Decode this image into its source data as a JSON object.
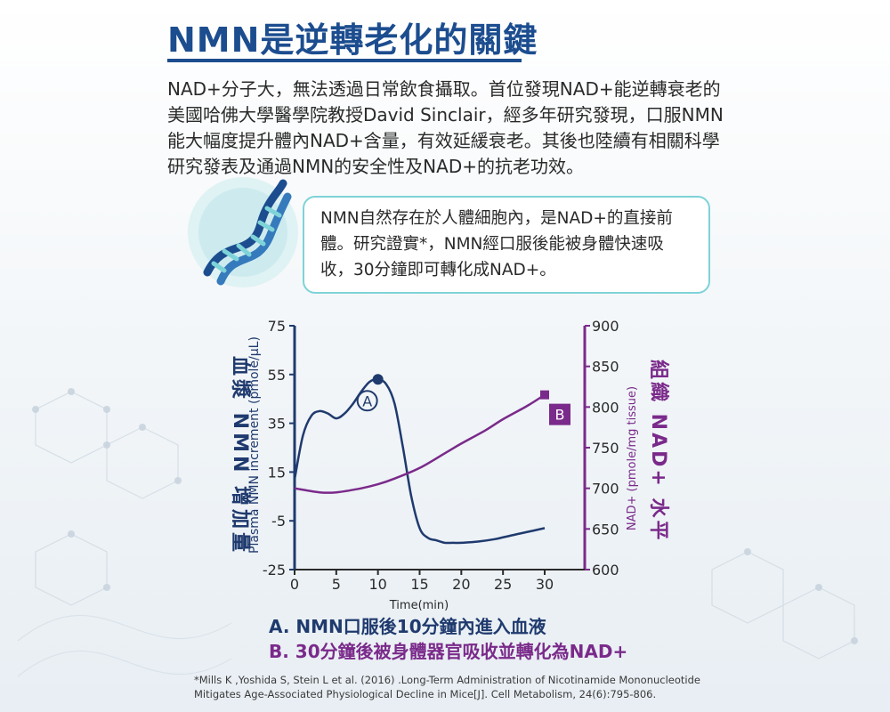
{
  "title": "NMN是逆轉老化的關鍵",
  "intro": "NAD+分子大，無法透過日常飲食攝取。首位發現NAD+能逆轉衰老的美國哈佛大學醫學院教授David Sinclair，經多年研究發現，口服NMN能大幅度提升體內NAD+含量，有效延緩衰老。其後也陸續有相關科學研究發表及通過NMN的安全性及NAD+的抗老功效。",
  "info_box": "NMN自然存在於人體細胞內，是NAD+的直接前體。研究證實*，NMN經口服後能被身體快速吸收，30分鐘即可轉化成NAD+。",
  "legend": {
    "a": "A. NMN口服後10分鐘內進入血液",
    "b": "B. 30分鐘後被身體器官吸收並轉化為NAD+"
  },
  "citation": "*Mills K ,Yoshida S, Stein L et al. (2016) .Long-Term Administration of Nicotinamide Mononucleotide Mitigates Age-Associated Physiological Decline in Mice[J]. Cell Metabolism, 24(6):795-806.",
  "colors": {
    "title": "#1c4d8f",
    "nmn_series": "#1f3a6e",
    "nad_series": "#7a2a8a",
    "box_border": "#7ed3d8"
  },
  "icons": [
    "dna-icon"
  ],
  "chart_data": {
    "type": "line",
    "xlabel": "Time(min)",
    "xlim": [
      0,
      30
    ],
    "xticks": [
      0,
      5,
      10,
      15,
      20,
      25,
      30
    ],
    "y_left": {
      "label_zh": "血漿 NMN 增加量",
      "label_en": "Plasma NMN increment (pmole/μL)",
      "ylim": [
        -25,
        75
      ],
      "ticks": [
        75,
        55,
        35,
        15,
        -5,
        -25
      ]
    },
    "y_right": {
      "label_zh": "組織 NAD+ 水平",
      "label_en": "NAD+ (pmole/mg tissue)",
      "ylim": [
        600,
        900
      ],
      "ticks": [
        900,
        850,
        800,
        750,
        700,
        650,
        600
      ]
    },
    "series": [
      {
        "axis": "left",
        "x": [
          0,
          1,
          2,
          3,
          4,
          5,
          6,
          7,
          8,
          9,
          10,
          11,
          12,
          13,
          14,
          15,
          16,
          17,
          18,
          19,
          20,
          22,
          24,
          26,
          28,
          30
        ],
        "y": [
          12,
          30,
          38,
          40,
          39,
          37,
          39,
          43,
          48,
          52,
          53,
          51,
          43,
          25,
          5,
          -8,
          -12,
          -13,
          -14,
          -14,
          -14,
          -13.5,
          -12.5,
          -11,
          -9.5,
          -8
        ],
        "marker": {
          "x": 10,
          "y": 53,
          "label": "A"
        }
      },
      {
        "axis": "right",
        "x": [
          0,
          3,
          5,
          8,
          10,
          12,
          15,
          18,
          20,
          23,
          25,
          28,
          30
        ],
        "y": [
          700,
          695,
          695,
          700,
          705,
          712,
          725,
          743,
          755,
          772,
          785,
          802,
          815
        ],
        "marker": {
          "x": 30,
          "y": 815,
          "label": "B"
        }
      }
    ]
  }
}
